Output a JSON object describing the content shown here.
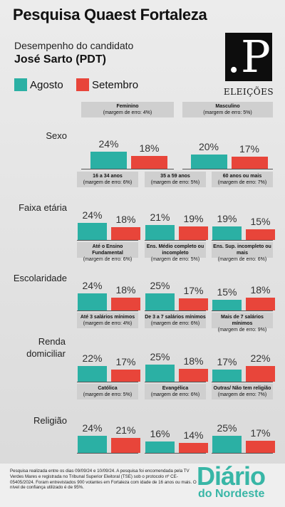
{
  "title": "Pesquisa Quaest Fortaleza",
  "subtitle": "Desempenho do candidato",
  "candidate": "José Sarto (PDT)",
  "logo": {
    "mark": ".P",
    "caption": "ELEIÇÕES"
  },
  "brand": {
    "line1": "Diário",
    "line2": "do Nordeste"
  },
  "footnote": "Pesquisa realizada entre os dias 09/09/24 e 10/09/24. A pesquisa foi encomendada pela TV Verdes Mares e registrada no Tribunal Superior Eleitoral (TSE) sob o protocolo nº CE-05405/2024. Foram entrevistados 900 votantes em Fortaleza com idade de 16 anos ou mais. O nível de confiança utilizado é de 95%.",
  "colors": {
    "agosto": "#2bb0a4",
    "setembro": "#e8453a"
  },
  "chart_data": {
    "type": "bar",
    "unit": "%",
    "series": [
      {
        "name": "Agosto",
        "color": "#2bb0a4"
      },
      {
        "name": "Setembro",
        "color": "#e8453a"
      }
    ],
    "categories": [
      {
        "name": "Sexo",
        "groups": [
          {
            "label": "Feminino",
            "margin": "(margem de erro: 4%)",
            "values": [
              24,
              18
            ]
          },
          {
            "label": "Masculino",
            "margin": "(margem de erro: 5%)",
            "values": [
              20,
              17
            ]
          }
        ]
      },
      {
        "name": "Faixa etária",
        "groups": [
          {
            "label": "16 a 34 anos",
            "margin": "(margem de erro: 6%)",
            "values": [
              24,
              18
            ]
          },
          {
            "label": "35 a 59 anos",
            "margin": "(margem de erro: 5%)",
            "values": [
              21,
              19
            ]
          },
          {
            "label": "60 anos ou mais",
            "margin": "(margem de erro: 7%)",
            "values": [
              19,
              15
            ]
          }
        ]
      },
      {
        "name": "Escolaridade",
        "groups": [
          {
            "label": "Até o Ensino Fundamental",
            "margin": "(margem de erro: 6%)",
            "values": [
              24,
              18
            ]
          },
          {
            "label": "Ens. Médio completo ou incompleto",
            "margin": "(margem de erro: 5%)",
            "values": [
              25,
              17
            ]
          },
          {
            "label": "Ens. Sup. incompleto ou mais",
            "margin": "(margem de erro: 6%)",
            "values": [
              15,
              18
            ]
          }
        ]
      },
      {
        "name": "Renda domiciliar",
        "groups": [
          {
            "label": "Até 3 salários mínimos",
            "margin": "(margem de erro: 4%)",
            "values": [
              22,
              17
            ]
          },
          {
            "label": "De 3 a 7 salários mínimos",
            "margin": "(margem de erro: 6%)",
            "values": [
              25,
              18
            ]
          },
          {
            "label": "Mais de 7 salários mínimos",
            "margin": "(margem de erro: 9%)",
            "values": [
              17,
              22
            ]
          }
        ]
      },
      {
        "name": "Religião",
        "groups": [
          {
            "label": "Católica",
            "margin": "(margem de erro: 5%)",
            "values": [
              24,
              21
            ]
          },
          {
            "label": "Evangélica",
            "margin": "(margem de erro: 6%)",
            "values": [
              16,
              14
            ]
          },
          {
            "label": "Outras/ Não tem religião",
            "margin": "(margem de erro: 7%)",
            "values": [
              25,
              17
            ]
          }
        ]
      }
    ]
  }
}
